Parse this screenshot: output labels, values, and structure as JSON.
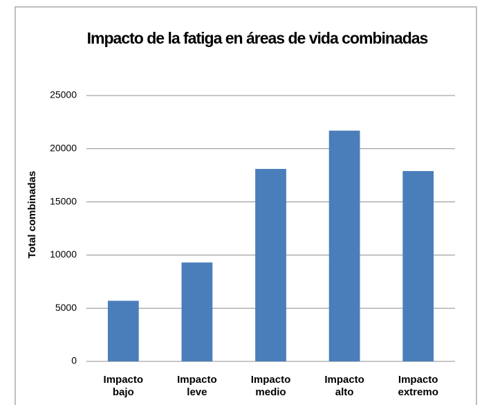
{
  "chart_data": {
    "type": "bar",
    "title": "Impacto de la fatiga en áreas de vida combinadas",
    "y_label": "Total combinadas",
    "categories": [
      "Impacto bajo",
      "Impacto leve",
      "Impacto medio",
      "Impacto alto",
      "Impacto extremo"
    ],
    "values": [
      5700,
      9300,
      18100,
      21700,
      17900
    ],
    "color": "#4a7ebb",
    "ylim": [
      0,
      25000
    ],
    "yticks": [
      0,
      5000,
      10000,
      15000,
      20000,
      25000
    ],
    "grid": true
  }
}
